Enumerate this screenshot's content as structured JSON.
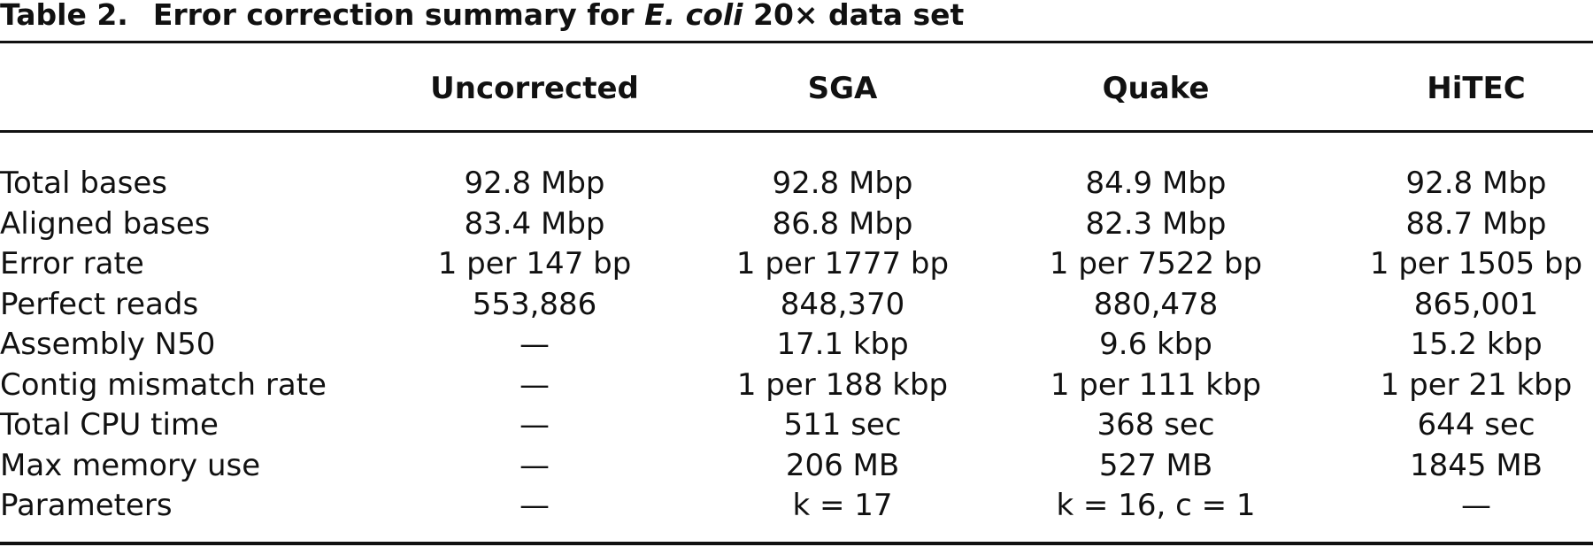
{
  "caption": {
    "label": "Table 2.",
    "title_prefix": "Error correction summary for ",
    "title_italic": "E. coli",
    "title_suffix": " 20× data set"
  },
  "columns": [
    "Uncorrected",
    "SGA",
    "Quake",
    "HiTEC"
  ],
  "rows": [
    {
      "label": "Total bases",
      "values": [
        "92.8 Mbp",
        "92.8 Mbp",
        "84.9 Mbp",
        "92.8 Mbp"
      ]
    },
    {
      "label": "Aligned bases",
      "values": [
        "83.4 Mbp",
        "86.8 Mbp",
        "82.3 Mbp",
        "88.7 Mbp"
      ]
    },
    {
      "label": "Error rate",
      "values": [
        "1 per 147 bp",
        "1 per 1777 bp",
        "1 per 7522 bp",
        "1 per 1505 bp"
      ]
    },
    {
      "label": "Perfect reads",
      "values": [
        "553,886",
        "848,370",
        "880,478",
        "865,001"
      ]
    },
    {
      "label": "Assembly N50",
      "values": [
        "—",
        "17.1 kbp",
        "9.6 kbp",
        "15.2 kbp"
      ]
    },
    {
      "label": "Contig mismatch rate",
      "values": [
        "—",
        "1 per 188 kbp",
        "1 per 111 kbp",
        "1 per 21 kbp"
      ]
    },
    {
      "label": "Total CPU time",
      "values": [
        "—",
        "511 sec",
        "368 sec",
        "644 sec"
      ]
    },
    {
      "label": "Max memory use",
      "values": [
        "—",
        "206 MB",
        "527 MB",
        "1845 MB"
      ]
    },
    {
      "label": "Parameters",
      "values": [
        "—",
        "k = 17",
        "k = 16, c = 1",
        "—"
      ]
    }
  ]
}
